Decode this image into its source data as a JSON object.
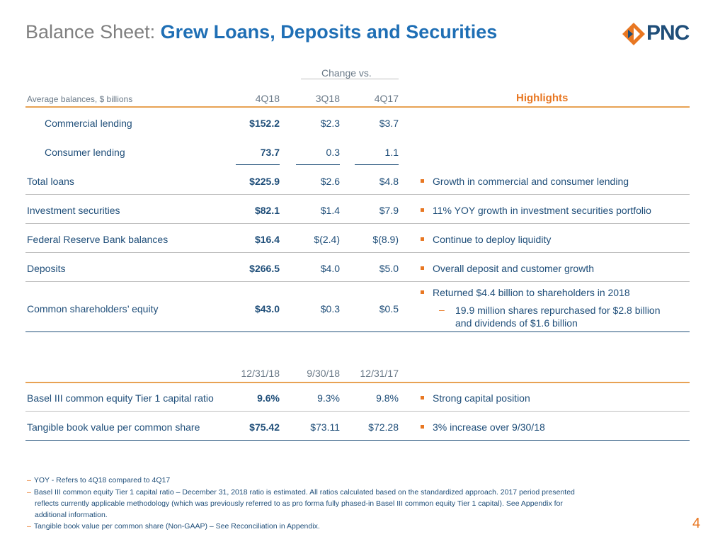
{
  "title": {
    "prefix": "Balance Sheet:",
    "main": "Grew Loans, Deposits and Securities"
  },
  "logo": {
    "text": "PNC"
  },
  "table1": {
    "change_vs": "Change vs.",
    "row_header": "Average balances, $ billions",
    "col_headers": [
      "4Q18",
      "3Q18",
      "4Q17"
    ],
    "highlights_header": "Highlights",
    "rows": [
      {
        "label": "Commercial lending",
        "v1": "$152.2",
        "v2": "$2.3",
        "v3": "$3.7"
      },
      {
        "label": "Consumer lending",
        "v1": "73.7",
        "v2": "0.3",
        "v3": "1.1"
      },
      {
        "label": "Total loans",
        "v1": "$225.9",
        "v2": "$2.6",
        "v3": "$4.8",
        "highlight": "Growth in commercial and consumer lending"
      },
      {
        "label": "Investment securities",
        "v1": "$82.1",
        "v2": "$1.4",
        "v3": "$7.9",
        "highlight": "11% YOY growth in investment securities portfolio"
      },
      {
        "label": "Federal Reserve Bank balances",
        "v1": "$16.4",
        "v2": "$(2.4)",
        "v3": "$(8.9)",
        "highlight": "Continue to deploy liquidity"
      },
      {
        "label": "Deposits",
        "v1": "$266.5",
        "v2": "$4.0",
        "v3": "$5.0",
        "highlight": "Overall deposit and customer growth"
      },
      {
        "label": "Common shareholders’ equity",
        "v1": "$43.0",
        "v2": "$0.3",
        "v3": "$0.5",
        "highlight": "Returned $4.4 billion to shareholders in 2018",
        "sub1": "19.9 million shares repurchased for $2.8 billion",
        "sub2": "and dividends of $1.6 billion"
      }
    ]
  },
  "table2": {
    "col_headers": [
      "12/31/18",
      "9/30/18",
      "12/31/17"
    ],
    "rows": [
      {
        "label": "Basel III common equity Tier 1 capital ratio",
        "v1": "9.6%",
        "v2": "9.3%",
        "v3": "9.8%",
        "highlight": "Strong capital position"
      },
      {
        "label": "Tangible book value per common share",
        "v1": "$75.42",
        "v2": "$73.11",
        "v3": "$72.28",
        "highlight": "3% increase over 9/30/18"
      }
    ]
  },
  "footnotes": {
    "f1": "YOY - Refers to 4Q18 compared to 4Q17",
    "f2_l1": "Basel III common equity Tier 1 capital ratio – December 31, 2018 ratio is estimated.  All ratios calculated based on the standardized approach. 2017 period presented",
    "f2_l2": "reflects currently applicable methodology (which was previously referred to as pro forma fully phased-in Basel III common equity Tier 1 capital). See Appendix for",
    "f2_l3": "additional information.",
    "f3": "Tangible book value per common share (Non-GAAP) – See Reconciliation in Appendix."
  },
  "page_number": "4",
  "colors": {
    "navy": "#1f4e79",
    "blue": "#1f6fb5",
    "orange": "#e87722",
    "grey": "#7f7f7f"
  }
}
